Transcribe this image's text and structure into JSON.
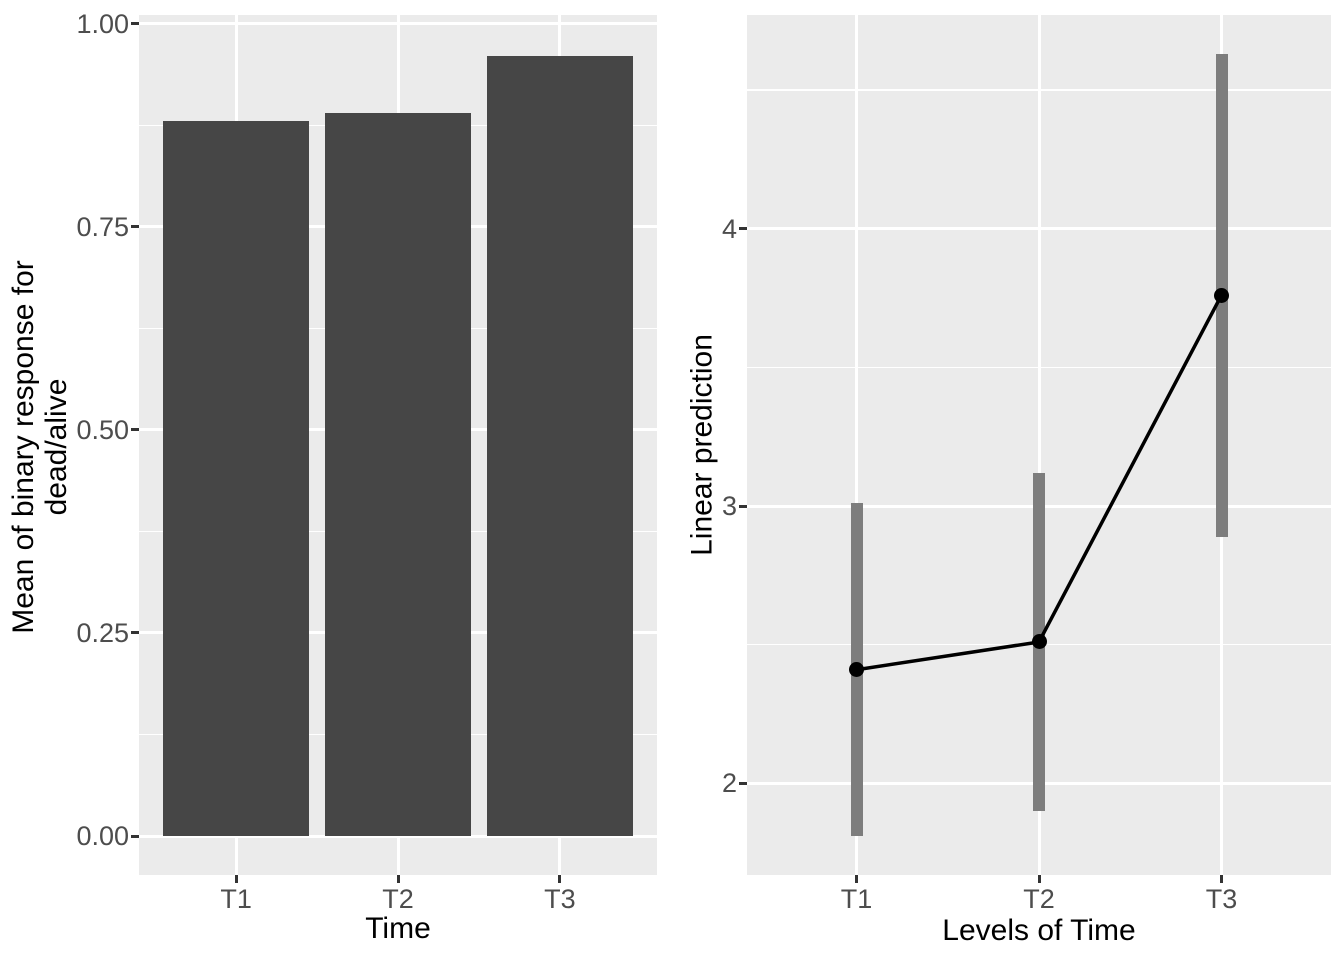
{
  "figure": {
    "background": "#ffffff",
    "panel_background": "#ebebeb",
    "grid_color": "#ffffff",
    "bar_color": "#464646",
    "errorbar_color": "#7d7d7d",
    "point_color": "#000000",
    "line_color": "#000000",
    "tick_label_color": "#4d4d4d",
    "axis_title_color": "#000000",
    "tick_mark_color": "#333333"
  },
  "chart_data": [
    {
      "type": "bar",
      "title": "",
      "categories": [
        "T1",
        "T2",
        "T3"
      ],
      "values": [
        0.88,
        0.89,
        0.96
      ],
      "xlabel": "Time",
      "ylabel": "Mean of binary response for\ndead/alive",
      "yticks": [
        {
          "label": "0.00",
          "value": 0.0
        },
        {
          "label": "0.25",
          "value": 0.25
        },
        {
          "label": "0.50",
          "value": 0.5
        },
        {
          "label": "0.75",
          "value": 0.75
        },
        {
          "label": "1.00",
          "value": 1.0
        }
      ],
      "ylim": [
        -0.048,
        1.011
      ],
      "grid": true,
      "legend": "none"
    },
    {
      "type": "pointrange",
      "title": "",
      "categories": [
        "T1",
        "T2",
        "T3"
      ],
      "values": [
        2.41,
        2.51,
        3.76
      ],
      "ci_low": [
        1.81,
        1.9,
        2.89
      ],
      "ci_high": [
        3.01,
        3.12,
        4.63
      ],
      "xlabel": "Levels of Time",
      "ylabel": "Linear prediction",
      "yticks": [
        {
          "label": "2",
          "value": 2
        },
        {
          "label": "3",
          "value": 3
        },
        {
          "label": "4",
          "value": 4
        }
      ],
      "ylim": [
        1.67,
        4.77
      ],
      "grid": true,
      "legend": "none"
    }
  ]
}
